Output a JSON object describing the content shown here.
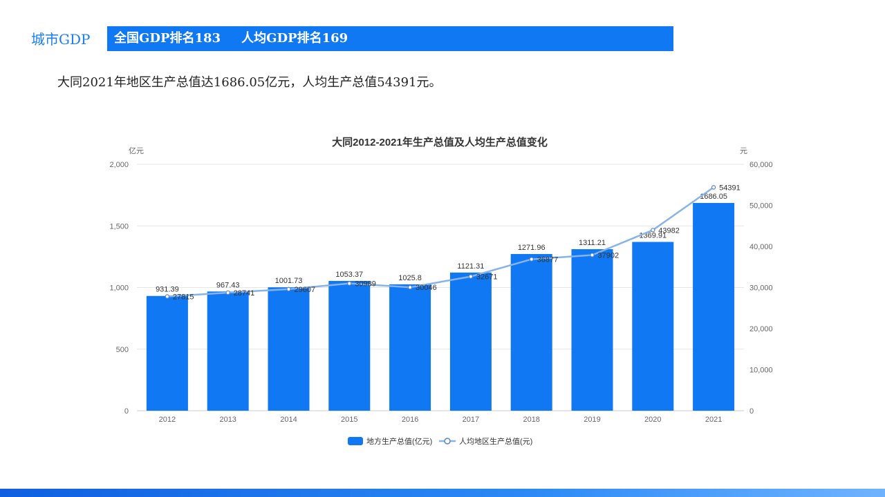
{
  "header": {
    "section_label": "城市GDP",
    "national_rank": "全国GDP排名183",
    "per_capita_rank": "人均GDP排名169"
  },
  "summary_text": "大同2021年地区生产总值达1686.05亿元，人均生产总值54391元。",
  "colors": {
    "accent": "#0f78f2",
    "bar": "#0f78f2",
    "line": "#87b3e8",
    "line_marker": "#5b86c4",
    "grid": "#e6e6e6",
    "text": "#666666"
  },
  "chart_data": {
    "type": "bar",
    "title": "大同2012-2021年生产总值及人均生产总值变化",
    "categories": [
      "2012",
      "2013",
      "2014",
      "2015",
      "2016",
      "2017",
      "2018",
      "2019",
      "2020",
      "2021"
    ],
    "y_left": {
      "unit": "亿元",
      "ylim": [
        0,
        2000
      ],
      "ticks": [
        "0",
        "500",
        "1,000",
        "1,500",
        "2,000"
      ],
      "tick_values": [
        0,
        500,
        1000,
        1500,
        2000
      ]
    },
    "y_right": {
      "unit": "元",
      "ylim": [
        0,
        60000
      ],
      "ticks": [
        "0",
        "10,000",
        "20,000",
        "30,000",
        "40,000",
        "50,000",
        "60,000"
      ],
      "tick_values": [
        0,
        10000,
        20000,
        30000,
        40000,
        50000,
        60000
      ]
    },
    "series": [
      {
        "name": "地方生产总值(亿元)",
        "type": "bar",
        "axis": "left",
        "values": [
          931.39,
          967.43,
          1001.73,
          1053.37,
          1025.8,
          1121.31,
          1271.96,
          1311.21,
          1369.91,
          1686.05
        ],
        "labels": [
          "931.39",
          "967.43",
          "1001.73",
          "1053.37",
          "1025.8",
          "1121.31",
          "1271.96",
          "1311.21",
          "1369.91",
          "1686.05"
        ]
      },
      {
        "name": "人均地区生产总值(元)",
        "type": "line",
        "axis": "right",
        "values": [
          27815,
          28741,
          29607,
          30989,
          30046,
          32671,
          36877,
          37902,
          43982,
          54391
        ],
        "labels": [
          "27815",
          "28741",
          "29607",
          "30989",
          "30046",
          "32671",
          "36877",
          "37902",
          "43982",
          "54391"
        ]
      }
    ],
    "grid": true,
    "legend": "bottom-center"
  }
}
